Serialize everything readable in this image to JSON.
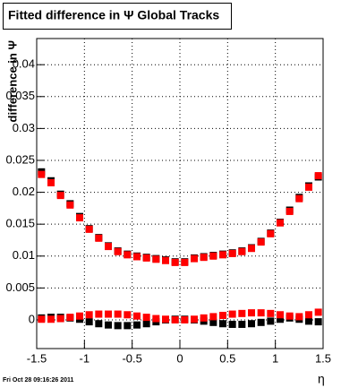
{
  "chart_data": {
    "type": "scatter",
    "title": "Fitted difference in Ψ  Global Tracks",
    "y_label": "difference in Ψ",
    "x_label": "η",
    "timestamp": "Fri Oct 28 09:16:26 2011",
    "x": [
      -1.45,
      -1.35,
      -1.25,
      -1.15,
      -1.05,
      -0.95,
      -0.85,
      -0.75,
      -0.65,
      -0.55,
      -0.45,
      -0.35,
      -0.25,
      -0.15,
      -0.05,
      0.05,
      0.15,
      0.25,
      0.35,
      0.45,
      0.55,
      0.65,
      0.75,
      0.85,
      0.95,
      1.05,
      1.15,
      1.25,
      1.35,
      1.45
    ],
    "series": [
      {
        "color": "#000000",
        "values": [
          0.0232,
          0.0218,
          0.0197,
          0.0182,
          0.0162,
          0.0143,
          0.0129,
          0.0116,
          0.0108,
          0.0103,
          0.01,
          0.0098,
          0.0096,
          0.0094,
          0.0091,
          0.0091,
          0.0097,
          0.0099,
          0.0101,
          0.0103,
          0.0105,
          0.0108,
          0.0113,
          0.0123,
          0.0136,
          0.0153,
          0.0172,
          0.0192,
          0.021,
          0.0224
        ]
      },
      {
        "color": "#000000",
        "values": [
          0.0003,
          0.0004,
          0.0004,
          0.0003,
          0.0001,
          -0.0003,
          -0.0006,
          -0.0008,
          -0.0009,
          -0.0009,
          -0.0008,
          -0.0006,
          -0.0003,
          0.0,
          0.0001,
          0.0001,
          0.0,
          -0.0002,
          -0.0004,
          -0.0006,
          -0.0007,
          -0.0007,
          -0.0006,
          -0.0004,
          -0.0002,
          0.0001,
          0.0003,
          0.0001,
          -0.0002,
          -0.0003
        ]
      },
      {
        "color": "#ff0000",
        "values": [
          0.0228,
          0.0215,
          0.0195,
          0.018,
          0.016,
          0.0142,
          0.0128,
          0.0115,
          0.0107,
          0.0102,
          0.0099,
          0.0097,
          0.0095,
          0.0093,
          0.009,
          0.009,
          0.0096,
          0.0098,
          0.01,
          0.0102,
          0.0104,
          0.0107,
          0.0112,
          0.0122,
          0.0135,
          0.0152,
          0.017,
          0.019,
          0.0208,
          0.0226
        ]
      },
      {
        "color": "#ff0000",
        "values": [
          0.0001,
          0.0001,
          0.0002,
          0.0004,
          0.0006,
          0.0008,
          0.0009,
          0.0009,
          0.0009,
          0.0008,
          0.0006,
          0.0004,
          0.0002,
          0.0001,
          0.0,
          0.0,
          0.0001,
          0.0003,
          0.0005,
          0.0007,
          0.0009,
          0.001,
          0.0011,
          0.0011,
          0.001,
          0.0008,
          0.0006,
          0.0005,
          0.0008,
          0.0012
        ]
      }
    ],
    "xlim": [
      -1.5,
      1.5
    ],
    "ylim": [
      -0.0045,
      0.0441
    ],
    "xticks": [
      -1.5,
      -1,
      -0.5,
      0,
      0.5,
      1,
      1.5
    ],
    "yticks": [
      0,
      0.005,
      0.01,
      0.015,
      0.02,
      0.025,
      0.03,
      0.035,
      0.04
    ],
    "grid": true
  }
}
